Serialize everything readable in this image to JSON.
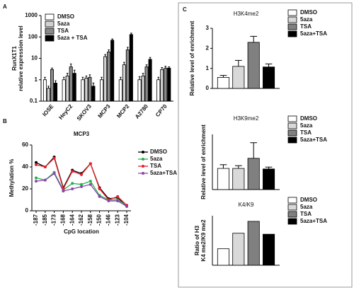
{
  "chart_data": [
    {
      "type": "bar",
      "panel": "A",
      "log": true,
      "legend": "upper left",
      "ylabel": [
        "RunX1T1",
        "relative expression level"
      ],
      "categories": [
        "IOSE",
        "HeyC2",
        "SKOV3",
        "MCP3",
        "MCP2",
        "A2780",
        "CP70"
      ],
      "ylim": [
        0.1,
        1000
      ],
      "yticks": [
        0.1,
        1,
        10,
        100,
        1000
      ],
      "series": [
        {
          "name": "DMSO",
          "color": "#ffffff",
          "values": [
            1,
            1,
            1,
            1,
            1,
            1,
            1
          ],
          "errors": [
            0.3,
            0.3,
            0.3,
            0.3,
            0.3,
            0.4,
            0.3
          ]
        },
        {
          "name": "5aza",
          "color": "#d0d0d0",
          "values": [
            0.4,
            1.5,
            1.2,
            12,
            5,
            1.5,
            3
          ],
          "errors": [
            0.1,
            0.5,
            0.3,
            3,
            1.5,
            0.5,
            0.7
          ]
        },
        {
          "name": "TSA",
          "color": "#8a8a8a",
          "values": [
            3,
            4,
            1.3,
            20,
            25,
            4,
            3.5
          ],
          "errors": [
            0.5,
            1.5,
            0.4,
            5,
            8,
            1,
            0.8
          ]
        },
        {
          "name": "5aza + TSA",
          "color": "#000000",
          "values": [
            0.7,
            2,
            0.5,
            70,
            130,
            9,
            3.5
          ],
          "errors": [
            0.2,
            0.8,
            0.2,
            10,
            20,
            2,
            0.5
          ]
        }
      ]
    },
    {
      "type": "line",
      "panel": "B",
      "title": "MCP3",
      "legend": "right",
      "ylabel": "Methylation %",
      "xlabel": "CpG location",
      "categories": [
        "-187",
        "-185",
        "-173",
        "-168",
        "-164",
        "-162",
        "-158",
        "-150",
        "-146",
        "-123",
        "-104"
      ],
      "ylim": [
        0,
        60
      ],
      "yticks": [
        0,
        20,
        40,
        60
      ],
      "series": [
        {
          "name": "DMSO",
          "color": "#000000",
          "values": [
            44,
            40,
            49,
            21,
            37,
            34,
            43,
            21,
            11,
            12,
            4
          ]
        },
        {
          "name": "5aza",
          "color": "#22b14c",
          "values": [
            30,
            28,
            35,
            19,
            25,
            24,
            27,
            14,
            10,
            10,
            5
          ]
        },
        {
          "name": "TSA",
          "color": "#e8202a",
          "values": [
            42,
            40,
            48,
            20,
            36,
            33,
            43,
            20,
            10,
            13,
            5
          ]
        },
        {
          "name": "5aza+TSA",
          "color": "#8e44ad",
          "values": [
            27,
            28,
            34,
            18,
            20,
            22,
            24,
            13,
            9,
            9,
            4
          ]
        }
      ]
    },
    {
      "type": "bar",
      "panel": "C",
      "title": "H3K4me2",
      "legend": "right",
      "ylabel": [
        "Relative level of enrichment"
      ],
      "ylim": [
        0,
        3
      ],
      "yticks": [
        0,
        1,
        2,
        3
      ],
      "series": [
        {
          "name": "DMSO",
          "color": "#ffffff",
          "values": [
            0.55
          ],
          "errors": [
            0.1
          ]
        },
        {
          "name": "5aza",
          "color": "#d9d9d9",
          "values": [
            1.1
          ],
          "errors": [
            0.3
          ]
        },
        {
          "name": "TSA",
          "color": "#808080",
          "values": [
            2.3
          ],
          "errors": [
            0.3
          ]
        },
        {
          "name": "5aza+TSA",
          "color": "#000000",
          "values": [
            1.07
          ],
          "errors": [
            0.15
          ]
        }
      ]
    },
    {
      "type": "bar",
      "title": "H3K9me2",
      "legend": "right",
      "ylabel": [
        "Relative level of enrichment"
      ],
      "ylim": [
        0,
        3
      ],
      "series": [
        {
          "name": "DMSO",
          "color": "#ffffff",
          "values": [
            1.15
          ],
          "errors": [
            0.2
          ]
        },
        {
          "name": "5aza",
          "color": "#d9d9d9",
          "values": [
            1.15
          ],
          "errors": [
            0.15
          ]
        },
        {
          "name": "TSA",
          "color": "#808080",
          "values": [
            1.7
          ],
          "errors": [
            0.85
          ]
        },
        {
          "name": "5aza+TSA",
          "color": "#000000",
          "values": [
            1.12
          ],
          "errors": [
            0.1
          ]
        }
      ]
    },
    {
      "type": "bar",
      "title": "K4/K9",
      "legend": "right",
      "ylabel": [
        "Ratio of H3",
        "K4 me2/K9 me2"
      ],
      "ylim": [
        0,
        1.5
      ],
      "series": [
        {
          "name": "DMSO",
          "color": "#ffffff",
          "values": [
            0.5
          ]
        },
        {
          "name": "5aza",
          "color": "#d9d9d9",
          "values": [
            0.97
          ]
        },
        {
          "name": "TSA",
          "color": "#808080",
          "values": [
            1.33
          ]
        },
        {
          "name": "5aza+TSA",
          "color": "#000000",
          "values": [
            0.94
          ]
        }
      ]
    }
  ]
}
